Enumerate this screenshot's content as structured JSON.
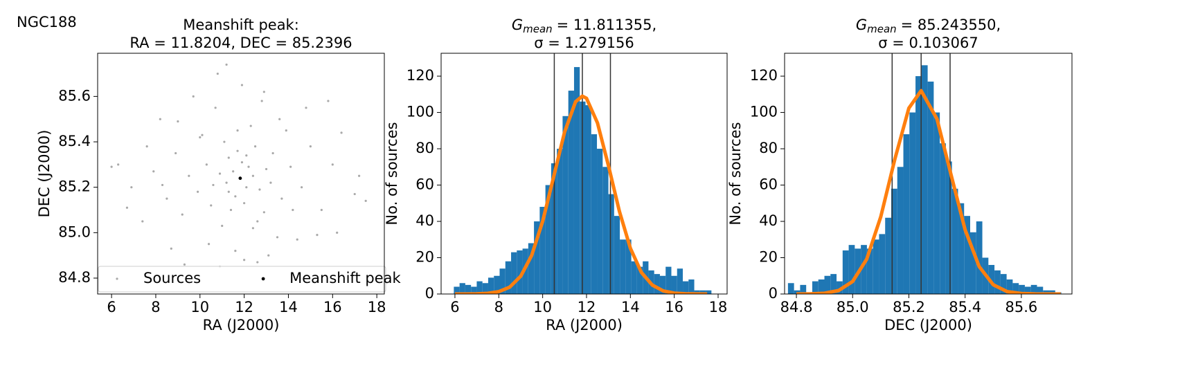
{
  "figure_title": "NGC188",
  "chart_data": [
    {
      "type": "scatter",
      "title": [
        "Meanshift peak:",
        "RA = 11.8204, DEC = 85.2396"
      ],
      "x_label": "RA (J2000)",
      "y_label": "DEC (J2000)",
      "xlim": [
        5.37,
        18.34
      ],
      "ylim": [
        84.73,
        85.79
      ],
      "xticks": [
        6,
        8,
        10,
        12,
        14,
        16,
        18
      ],
      "yticks": [
        84.8,
        {
          "value": 85.0,
          "label": "85.0"
        },
        85.2,
        85.4,
        85.6
      ],
      "legend": "lower center",
      "series": [
        {
          "name": "Sources",
          "color": "#a9a9a9",
          "size": 1.6,
          "x": [
            11.8,
            11.5,
            12.1,
            11.2,
            12.4,
            11.9,
            11.6,
            12.2,
            10.9,
            12.7,
            11.3,
            12.0,
            11.7,
            10.6,
            13.0,
            11.4,
            12.5,
            11.1,
            12.9,
            10.3,
            13.3,
            9.9,
            13.7,
            10.1,
            12.6,
            11.0,
            12.3,
            9.5,
            14.1,
            8.9,
            14.6,
            9.2,
            13.9,
            8.5,
            15.0,
            10.7,
            13.5,
            11.6,
            12.8,
            7.9,
            15.5,
            8.2,
            16.0,
            7.4,
            16.4,
            6.9,
            17.0,
            6.3,
            17.5,
            6.0,
            10.4,
            13.1,
            9.7,
            14.4,
            11.9,
            12.0,
            10.8,
            12.9,
            9.3,
            14.8,
            10.0,
            13.6,
            11.2,
            12.4,
            8.7,
            15.3,
            10.5,
            11.7,
            13.2,
            9.0,
            14.2,
            7.6,
            16.2,
            10.9,
            12.6,
            6.7,
            17.2,
            11.3,
            12.1,
            8.3,
            15.8
          ],
          "values": [
            85.24,
            85.27,
            85.2,
            85.22,
            85.25,
            85.31,
            85.16,
            85.29,
            85.26,
            85.19,
            85.33,
            85.13,
            85.36,
            85.21,
            85.28,
            85.1,
            85.38,
            85.4,
            85.09,
            85.3,
            85.35,
            85.18,
            85.15,
            85.43,
            85.05,
            85.03,
            85.47,
            85.25,
            85.29,
            85.35,
            85.2,
            85.08,
            85.45,
            85.15,
            85.38,
            85.55,
            84.98,
            84.92,
            85.58,
            85.27,
            85.1,
            85.5,
            85.3,
            85.05,
            85.44,
            85.2,
            85.17,
            85.3,
            85.14,
            85.29,
            84.95,
            84.9,
            85.6,
            84.97,
            85.65,
            84.88,
            85.7,
            85.62,
            84.86,
            85.55,
            85.42,
            85.5,
            85.74,
            85.02,
            84.93,
            84.99,
            85.12,
            85.45,
            85.22,
            85.49,
            85.1,
            85.38,
            85.0,
            84.85,
            84.87,
            85.11,
            85.25,
            85.18,
            85.34,
            85.21,
            85.58
          ]
        },
        {
          "name": "Meanshift peak",
          "color": "#000000",
          "size": 2.4,
          "x": [
            11.8204
          ],
          "values": [
            85.2396
          ]
        }
      ]
    },
    {
      "type": "histogram",
      "title_symbol": "G",
      "title_subscript": "mean",
      "title_rest": "= 11.811355,",
      "subtitle": "σ = 1.279156",
      "x_label": "RA (J2000)",
      "y_label": "No. of sources",
      "xlim": [
        5.37,
        18.41
      ],
      "ylim": [
        0,
        132.6
      ],
      "xticks": [
        6,
        8,
        10,
        12,
        14,
        16,
        18
      ],
      "yticks": [
        0,
        20,
        40,
        60,
        80,
        100,
        120
      ],
      "color": "#1f77b4",
      "bins": [
        5.95,
        6.211,
        6.472,
        6.733,
        6.994,
        7.255,
        7.516,
        7.777,
        8.038,
        8.299,
        8.56,
        8.821,
        9.082,
        9.343,
        9.604,
        9.865,
        10.126,
        10.387,
        10.648,
        10.909,
        11.17,
        11.431,
        11.692,
        11.953,
        12.214,
        12.475,
        12.736,
        12.997,
        13.258,
        13.519,
        13.78,
        14.041,
        14.302,
        14.563,
        14.824,
        15.085,
        15.346,
        15.607,
        15.868,
        16.129,
        16.39,
        16.651,
        16.912,
        17.173,
        17.434,
        17.695
      ],
      "counts": [
        4,
        6,
        5,
        4,
        7,
        6,
        9,
        10,
        14,
        18,
        23,
        24,
        25,
        28,
        40,
        48,
        60,
        72,
        80,
        98,
        112,
        125,
        106,
        104,
        88,
        80,
        70,
        55,
        43,
        30,
        30,
        18,
        15,
        18,
        13,
        11,
        10,
        15,
        10,
        14,
        7,
        8,
        2,
        2,
        2
      ],
      "vlines": [
        10.53,
        11.81,
        13.09
      ],
      "vline_color": "#333333",
      "fit": {
        "color": "#ff7f0e",
        "x": [
          6,
          6.5,
          7,
          7.5,
          8,
          8.5,
          9,
          9.5,
          10,
          10.5,
          11,
          11.5,
          11.81,
          12,
          12.5,
          13,
          13.5,
          14,
          14.5,
          15,
          15.5,
          16,
          16.5,
          17,
          17.5
        ],
        "values": [
          0,
          0.02,
          0.09,
          0.37,
          1.3,
          3.8,
          9.8,
          21.3,
          40.0,
          64.5,
          89.2,
          105.9,
          109,
          107.8,
          94.2,
          70.7,
          45.5,
          25.2,
          11.9,
          4.9,
          1.7,
          0.5,
          0.13,
          0.03,
          0.005
        ]
      }
    },
    {
      "type": "histogram",
      "title_symbol": "G",
      "title_subscript": "mean",
      "title_rest": "= 85.243550,",
      "subtitle": "σ = 0.103067",
      "x_label": "DEC (J2000)",
      "y_label": "No. of sources",
      "xlim": [
        84.758,
        85.78
      ],
      "ylim": [
        0,
        132.6
      ],
      "xticks": [
        84.8,
        {
          "value": 85.0,
          "label": "85.0"
        },
        85.2,
        85.4,
        85.6
      ],
      "yticks": [
        0,
        20,
        40,
        60,
        80,
        100,
        120
      ],
      "color": "#1f77b4",
      "bins": [
        84.77,
        84.7916,
        84.8132,
        84.8348,
        84.8564,
        84.878,
        84.8996,
        84.9212,
        84.9428,
        84.9644,
        84.986,
        85.0076,
        85.0292,
        85.0508,
        85.0724,
        85.094,
        85.1156,
        85.1372,
        85.1588,
        85.1804,
        85.202,
        85.2236,
        85.2452,
        85.2668,
        85.2884,
        85.31,
        85.3316,
        85.3532,
        85.3748,
        85.3964,
        85.418,
        85.4396,
        85.4612,
        85.4828,
        85.5044,
        85.526,
        85.5476,
        85.5692,
        85.5908,
        85.6124,
        85.634,
        85.6556,
        85.6772,
        85.6988,
        85.7204,
        85.742
      ],
      "counts": [
        6,
        2,
        5,
        1,
        7,
        8,
        10,
        11,
        7,
        24,
        27,
        25,
        27,
        25,
        30,
        33,
        42,
        58,
        70,
        88,
        100,
        120,
        126,
        117,
        100,
        83,
        73,
        58,
        50,
        43,
        34,
        40,
        20,
        16,
        13,
        11,
        8,
        6,
        5,
        4,
        5,
        4,
        2,
        2,
        1
      ],
      "vlines": [
        85.1405,
        85.2436,
        85.3466
      ],
      "vline_color": "#333333",
      "fit": {
        "color": "#ff7f0e",
        "x": [
          84.8,
          84.85,
          84.9,
          84.95,
          85.0,
          85.05,
          85.1,
          85.15,
          85.2,
          85.2436,
          85.3,
          85.35,
          85.4,
          85.45,
          85.5,
          85.55,
          85.6,
          85.65,
          85.7,
          85.74
        ],
        "values": [
          0.01,
          0.08,
          0.43,
          1.9,
          6.9,
          19.2,
          42.5,
          74.2,
          102.4,
          112,
          96.4,
          65.7,
          35.4,
          15.1,
          5.1,
          1.3,
          0.28,
          0.05,
          0.01,
          0
        ]
      }
    }
  ]
}
